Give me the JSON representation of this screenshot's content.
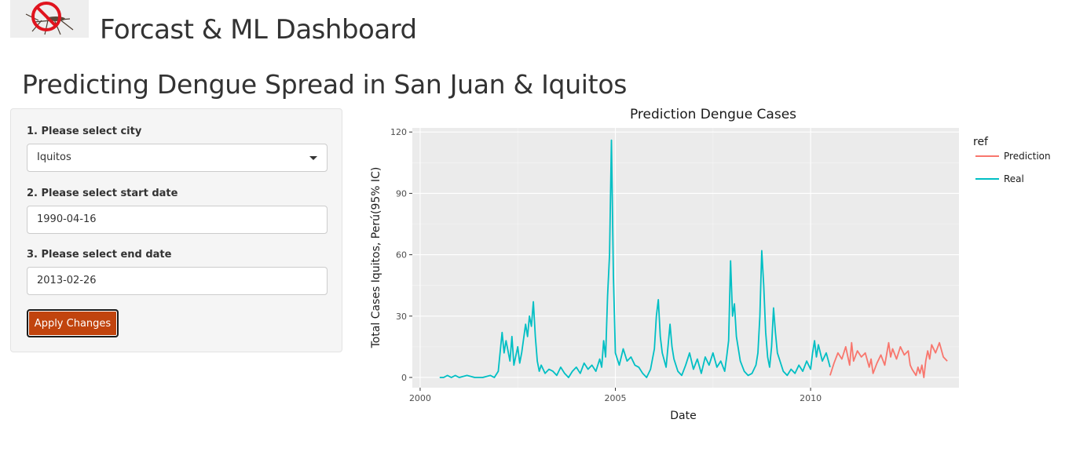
{
  "header": {
    "logo_icon": "no-mosquito-icon",
    "app_title": "Forcast & ML Dashboard"
  },
  "page_title": "Predicting Dengue Spread in San Juan & Iquitos",
  "sidebar": {
    "city_label": "1. Please select city",
    "city_value": "Iquitos",
    "start_label": "2. Please select start date",
    "start_value": "1990-04-16",
    "end_label": "3. Please select end date",
    "end_value": "2013-02-26",
    "apply_label": "Apply Changes",
    "accent_color": "#c1440e"
  },
  "chart_data": {
    "type": "line",
    "title": "Prediction Dengue Cases",
    "xlabel": "Date",
    "ylabel": "Total Cases Iquitos, Perú(95% IC)",
    "xlim": [
      1999.8,
      2013.8
    ],
    "ylim": [
      -5,
      122
    ],
    "x_ticks": [
      "2000",
      "2005",
      "2010"
    ],
    "y_ticks": [
      "0",
      "30",
      "60",
      "90",
      "120"
    ],
    "grid": true,
    "legend_title": "ref",
    "legend_position": "right",
    "series": [
      {
        "name": "Real",
        "color": "#00bfc4",
        "points": [
          [
            2000.5,
            0
          ],
          [
            2000.6,
            0
          ],
          [
            2000.7,
            1
          ],
          [
            2000.8,
            0
          ],
          [
            2000.9,
            1
          ],
          [
            2001.0,
            0
          ],
          [
            2001.2,
            1
          ],
          [
            2001.4,
            0
          ],
          [
            2001.6,
            0
          ],
          [
            2001.8,
            1
          ],
          [
            2001.9,
            0
          ],
          [
            2002.0,
            3
          ],
          [
            2002.1,
            22
          ],
          [
            2002.15,
            12
          ],
          [
            2002.2,
            18
          ],
          [
            2002.3,
            8
          ],
          [
            2002.35,
            20
          ],
          [
            2002.4,
            6
          ],
          [
            2002.5,
            15
          ],
          [
            2002.55,
            7
          ],
          [
            2002.6,
            12
          ],
          [
            2002.7,
            26
          ],
          [
            2002.75,
            20
          ],
          [
            2002.8,
            30
          ],
          [
            2002.85,
            25
          ],
          [
            2002.9,
            37
          ],
          [
            2002.95,
            20
          ],
          [
            2003.0,
            8
          ],
          [
            2003.05,
            3
          ],
          [
            2003.1,
            6
          ],
          [
            2003.2,
            2
          ],
          [
            2003.3,
            4
          ],
          [
            2003.4,
            3
          ],
          [
            2003.5,
            1
          ],
          [
            2003.6,
            5
          ],
          [
            2003.7,
            2
          ],
          [
            2003.8,
            0
          ],
          [
            2003.9,
            3
          ],
          [
            2004.0,
            5
          ],
          [
            2004.1,
            2
          ],
          [
            2004.2,
            7
          ],
          [
            2004.3,
            4
          ],
          [
            2004.4,
            6
          ],
          [
            2004.5,
            3
          ],
          [
            2004.6,
            9
          ],
          [
            2004.65,
            5
          ],
          [
            2004.7,
            18
          ],
          [
            2004.75,
            10
          ],
          [
            2004.8,
            40
          ],
          [
            2004.85,
            60
          ],
          [
            2004.9,
            116
          ],
          [
            2004.95,
            50
          ],
          [
            2005.0,
            12
          ],
          [
            2005.1,
            6
          ],
          [
            2005.2,
            14
          ],
          [
            2005.3,
            8
          ],
          [
            2005.4,
            10
          ],
          [
            2005.5,
            6
          ],
          [
            2005.6,
            5
          ],
          [
            2005.7,
            2
          ],
          [
            2005.8,
            0
          ],
          [
            2005.9,
            4
          ],
          [
            2006.0,
            14
          ],
          [
            2006.05,
            30
          ],
          [
            2006.1,
            38
          ],
          [
            2006.15,
            20
          ],
          [
            2006.2,
            12
          ],
          [
            2006.3,
            5
          ],
          [
            2006.4,
            26
          ],
          [
            2006.45,
            15
          ],
          [
            2006.5,
            9
          ],
          [
            2006.6,
            3
          ],
          [
            2006.7,
            1
          ],
          [
            2006.8,
            6
          ],
          [
            2006.9,
            12
          ],
          [
            2007.0,
            4
          ],
          [
            2007.1,
            9
          ],
          [
            2007.2,
            2
          ],
          [
            2007.3,
            10
          ],
          [
            2007.4,
            6
          ],
          [
            2007.5,
            12
          ],
          [
            2007.6,
            5
          ],
          [
            2007.7,
            8
          ],
          [
            2007.8,
            3
          ],
          [
            2007.85,
            10
          ],
          [
            2007.9,
            18
          ],
          [
            2007.95,
            57
          ],
          [
            2008.0,
            30
          ],
          [
            2008.05,
            36
          ],
          [
            2008.1,
            20
          ],
          [
            2008.2,
            8
          ],
          [
            2008.3,
            3
          ],
          [
            2008.4,
            1
          ],
          [
            2008.5,
            2
          ],
          [
            2008.6,
            6
          ],
          [
            2008.65,
            12
          ],
          [
            2008.7,
            30
          ],
          [
            2008.75,
            62
          ],
          [
            2008.8,
            45
          ],
          [
            2008.85,
            22
          ],
          [
            2008.9,
            10
          ],
          [
            2008.95,
            5
          ],
          [
            2009.0,
            15
          ],
          [
            2009.05,
            34
          ],
          [
            2009.1,
            22
          ],
          [
            2009.15,
            12
          ],
          [
            2009.2,
            9
          ],
          [
            2009.3,
            3
          ],
          [
            2009.4,
            1
          ],
          [
            2009.5,
            4
          ],
          [
            2009.6,
            2
          ],
          [
            2009.7,
            6
          ],
          [
            2009.8,
            3
          ],
          [
            2009.9,
            8
          ],
          [
            2010.0,
            4
          ],
          [
            2010.05,
            12
          ],
          [
            2010.1,
            18
          ],
          [
            2010.15,
            10
          ],
          [
            2010.2,
            16
          ],
          [
            2010.3,
            8
          ],
          [
            2010.4,
            12
          ],
          [
            2010.5,
            5
          ]
        ]
      },
      {
        "name": "Prediction",
        "color": "#f8766d",
        "points": [
          [
            2010.5,
            1
          ],
          [
            2010.6,
            7
          ],
          [
            2010.7,
            12
          ],
          [
            2010.8,
            9
          ],
          [
            2010.9,
            15
          ],
          [
            2011.0,
            6
          ],
          [
            2011.05,
            17
          ],
          [
            2011.1,
            8
          ],
          [
            2011.2,
            13
          ],
          [
            2011.3,
            10
          ],
          [
            2011.4,
            12
          ],
          [
            2011.5,
            5
          ],
          [
            2011.55,
            9
          ],
          [
            2011.6,
            2
          ],
          [
            2011.7,
            7
          ],
          [
            2011.8,
            11
          ],
          [
            2011.9,
            6
          ],
          [
            2012.0,
            17
          ],
          [
            2012.05,
            10
          ],
          [
            2012.1,
            14
          ],
          [
            2012.2,
            9
          ],
          [
            2012.3,
            15
          ],
          [
            2012.4,
            11
          ],
          [
            2012.5,
            13
          ],
          [
            2012.55,
            6
          ],
          [
            2012.6,
            4
          ],
          [
            2012.7,
            1
          ],
          [
            2012.75,
            5
          ],
          [
            2012.8,
            2
          ],
          [
            2012.85,
            6
          ],
          [
            2012.9,
            0
          ],
          [
            2012.95,
            8
          ],
          [
            2013.0,
            13
          ],
          [
            2013.05,
            9
          ],
          [
            2013.1,
            16
          ],
          [
            2013.2,
            12
          ],
          [
            2013.3,
            17
          ],
          [
            2013.4,
            10
          ],
          [
            2013.5,
            8
          ]
        ]
      }
    ]
  }
}
